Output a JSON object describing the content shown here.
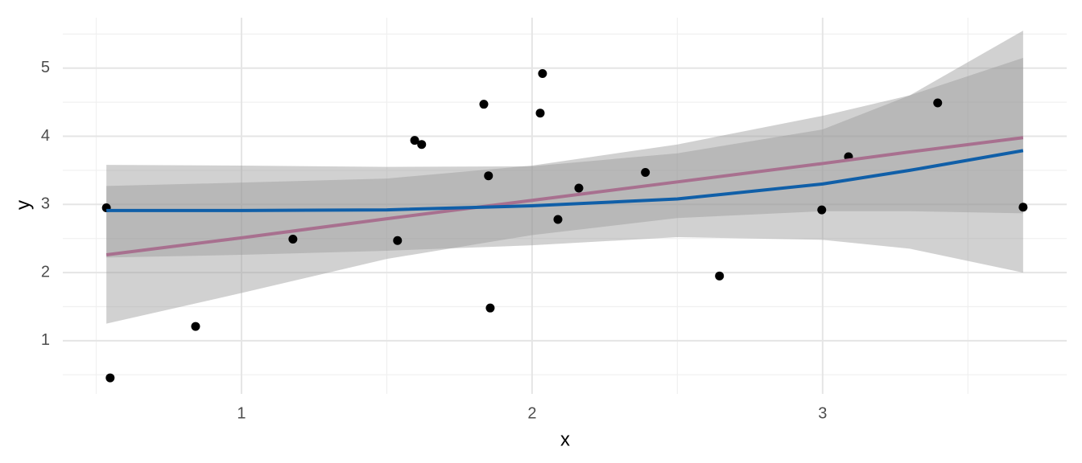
{
  "chart_data": {
    "type": "scatter",
    "x_label": "x",
    "y_label": "y",
    "xlim": [
      0.385,
      3.84
    ],
    "ylim": [
      0.22,
      5.74
    ],
    "xticks": [
      1,
      2,
      3
    ],
    "yticks": [
      1,
      2,
      3,
      4,
      5
    ],
    "xminor": [
      0.5,
      1.5,
      2.5,
      3.5
    ],
    "yminor": [
      0.5,
      1.5,
      2.5,
      3.5,
      4.5,
      5.5
    ],
    "grid": true,
    "points": {
      "color": "#000000",
      "x": [
        0.535,
        0.548,
        0.842,
        1.177,
        1.537,
        1.596,
        1.62,
        1.834,
        1.85,
        1.856,
        2.028,
        2.036,
        2.089,
        2.161,
        2.39,
        2.645,
        2.997,
        3.089,
        3.396,
        3.69
      ],
      "y": [
        2.95,
        0.455,
        1.21,
        2.49,
        2.47,
        3.94,
        3.88,
        4.47,
        3.42,
        1.48,
        4.34,
        4.92,
        2.78,
        3.24,
        3.47,
        1.95,
        2.92,
        3.7,
        4.49,
        2.96
      ]
    },
    "fits": [
      {
        "color": "#a8708f",
        "band_color": "#999999",
        "x": [
          0.535,
          1,
          1.5,
          2,
          2.5,
          3,
          3.3,
          3.69
        ],
        "values": [
          2.26,
          2.51,
          2.79,
          3.06,
          3.33,
          3.6,
          3.77,
          3.98
        ],
        "lower": [
          1.25,
          1.7,
          2.2,
          2.55,
          2.8,
          2.9,
          2.9,
          2.87
        ],
        "upper": [
          3.27,
          3.32,
          3.38,
          3.57,
          3.88,
          4.3,
          4.6,
          5.15
        ]
      },
      {
        "color": "#105fa8",
        "band_color": "#999999",
        "x": [
          0.535,
          1,
          1.5,
          2,
          2.5,
          3,
          3.3,
          3.69
        ],
        "values": [
          2.91,
          2.91,
          2.92,
          2.98,
          3.08,
          3.3,
          3.5,
          3.79
        ],
        "lower": [
          2.22,
          2.26,
          2.32,
          2.4,
          2.52,
          2.48,
          2.35,
          2.0
        ],
        "upper": [
          3.58,
          3.57,
          3.55,
          3.56,
          3.75,
          4.1,
          4.6,
          5.55
        ]
      }
    ]
  }
}
